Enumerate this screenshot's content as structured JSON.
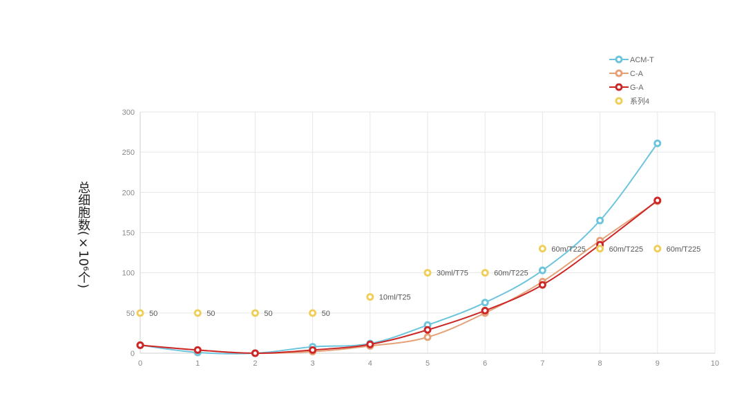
{
  "chart_data": {
    "type": "line",
    "title": "",
    "ylabel": "总细胞数(×10⁶个)",
    "xlabel": "",
    "xlim": [
      0,
      10
    ],
    "ylim": [
      0,
      300
    ],
    "xticks": [
      0,
      1,
      2,
      3,
      4,
      5,
      6,
      7,
      8,
      9,
      10
    ],
    "yticks": [
      0,
      50,
      100,
      150,
      200,
      250,
      300
    ],
    "grid": true,
    "legend_position": "top-right",
    "series": [
      {
        "name": "ACM-T",
        "color": "#6cc4dd",
        "x": [
          0,
          1,
          2,
          3,
          4,
          5,
          6,
          7,
          8,
          9
        ],
        "y": [
          10,
          1,
          0,
          8,
          12,
          35,
          63,
          103,
          165,
          261
        ]
      },
      {
        "name": "C-A",
        "color": "#e5a178",
        "x": [
          0,
          1,
          2,
          3,
          4,
          5,
          6,
          7,
          8,
          9
        ],
        "y": [
          10,
          4,
          0,
          2,
          9,
          20,
          50,
          89,
          140,
          189
        ]
      },
      {
        "name": "G-A",
        "color": "#cc2626",
        "x": [
          0,
          1,
          2,
          3,
          4,
          5,
          6,
          7,
          8,
          9
        ],
        "y": [
          10,
          4,
          0,
          4,
          11,
          29,
          53,
          85,
          135,
          190
        ]
      },
      {
        "name": "系列4",
        "color": "#efcf5a",
        "type": "scatter",
        "x": [
          0,
          1,
          2,
          3,
          4,
          5,
          6,
          7,
          8,
          9
        ],
        "y": [
          50,
          50,
          50,
          50,
          70,
          100,
          100,
          130,
          130,
          130
        ],
        "labels": [
          "50",
          "50",
          "50",
          "50",
          "10ml/T25",
          "30ml/T75",
          "60m/T225",
          "60m/T225",
          "60m/T225",
          "60m/T225"
        ]
      }
    ]
  }
}
